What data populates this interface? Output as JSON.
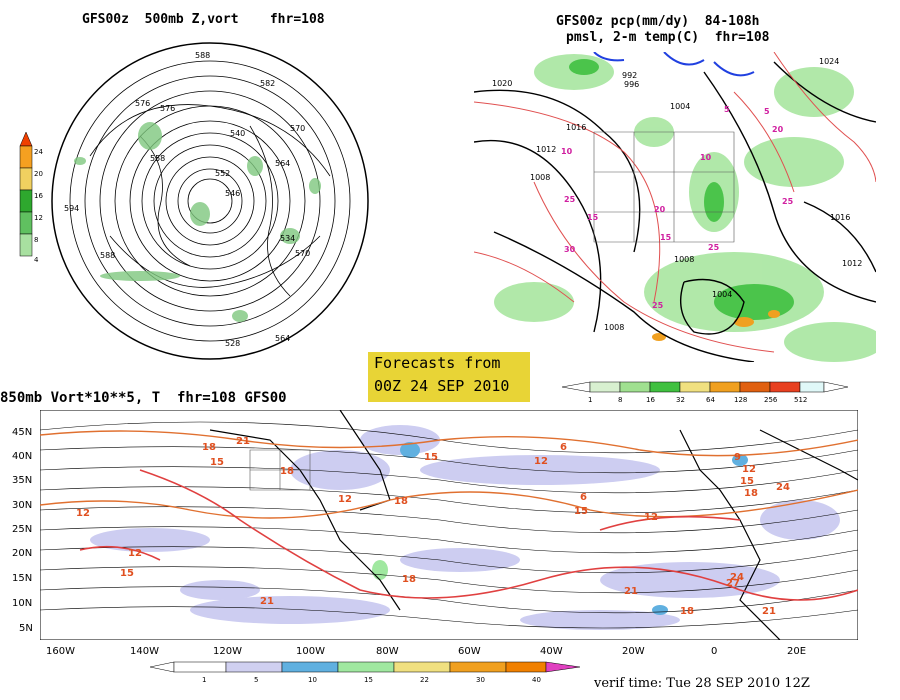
{
  "panels": {
    "polar": {
      "title": "GFS00z  500mb Z,vort    fhr=108",
      "contour_labels": [
        "588",
        "582",
        "576",
        "570",
        "564",
        "558",
        "552",
        "546",
        "540",
        "534",
        "528",
        "594",
        "588",
        "576",
        "570",
        "564"
      ],
      "colorbar": {
        "labels": [
          "24",
          "20",
          "16",
          "12",
          "8",
          "4"
        ],
        "colors": [
          "#f04000",
          "#f5a020",
          "#f0d060",
          "#2ea82e",
          "#60c060",
          "#a8e0a0"
        ]
      }
    },
    "precip": {
      "title_line1": "GFS00z pcp(mm/dy)  84-108h",
      "title_line2": "pmsl, 2-m temp(C)  fhr=108",
      "labels": [
        "1020",
        "1016",
        "1012",
        "1008",
        "1004",
        "992",
        "996",
        "1024",
        "1016",
        "1012",
        "1008",
        "1004",
        "1008",
        "10",
        "15",
        "20",
        "25",
        "30",
        "5",
        "5",
        "10",
        "15",
        "20",
        "25",
        "25",
        "25"
      ],
      "colorbar": {
        "labels": [
          "1",
          "8",
          "16",
          "32",
          "64",
          "128",
          "256",
          "512"
        ],
        "colors": [
          "#d8f0d0",
          "#a0e090",
          "#40c040",
          "#f0e080",
          "#f0a020",
          "#e06010",
          "#e84020",
          "#e0f8f8"
        ]
      }
    },
    "vort850": {
      "title": "850mb Vort*10**5, T  fhr=108 GFS00",
      "lat_labels": [
        "45N",
        "40N",
        "35N",
        "30N",
        "25N",
        "20N",
        "15N",
        "10N",
        "5N"
      ],
      "lon_labels": [
        "160W",
        "140W",
        "120W",
        "100W",
        "80W",
        "60W",
        "40W",
        "20W",
        "0",
        "20E"
      ],
      "temp_labels": [
        "18",
        "21",
        "15",
        "12",
        "18",
        "15",
        "12",
        "18",
        "21",
        "9",
        "12",
        "15",
        "18",
        "24",
        "27",
        "21",
        "24",
        "15",
        "12",
        "18",
        "21",
        "18",
        "15",
        "6",
        "6",
        "12",
        "12"
      ],
      "colorbar": {
        "labels": [
          "1",
          "5",
          "10",
          "15",
          "22",
          "30",
          "40"
        ],
        "colors": [
          "#ffffff",
          "#d0d0f0",
          "#60b0e0",
          "#a0e8a0",
          "#f0e080",
          "#f0a020",
          "#f08000",
          "#e040c0"
        ]
      }
    }
  },
  "forecast_box": {
    "line1": "Forecasts from",
    "line2": "00Z 24 SEP 2010"
  },
  "verif_time": "verif time: Tue 28 SEP 2010 12Z"
}
